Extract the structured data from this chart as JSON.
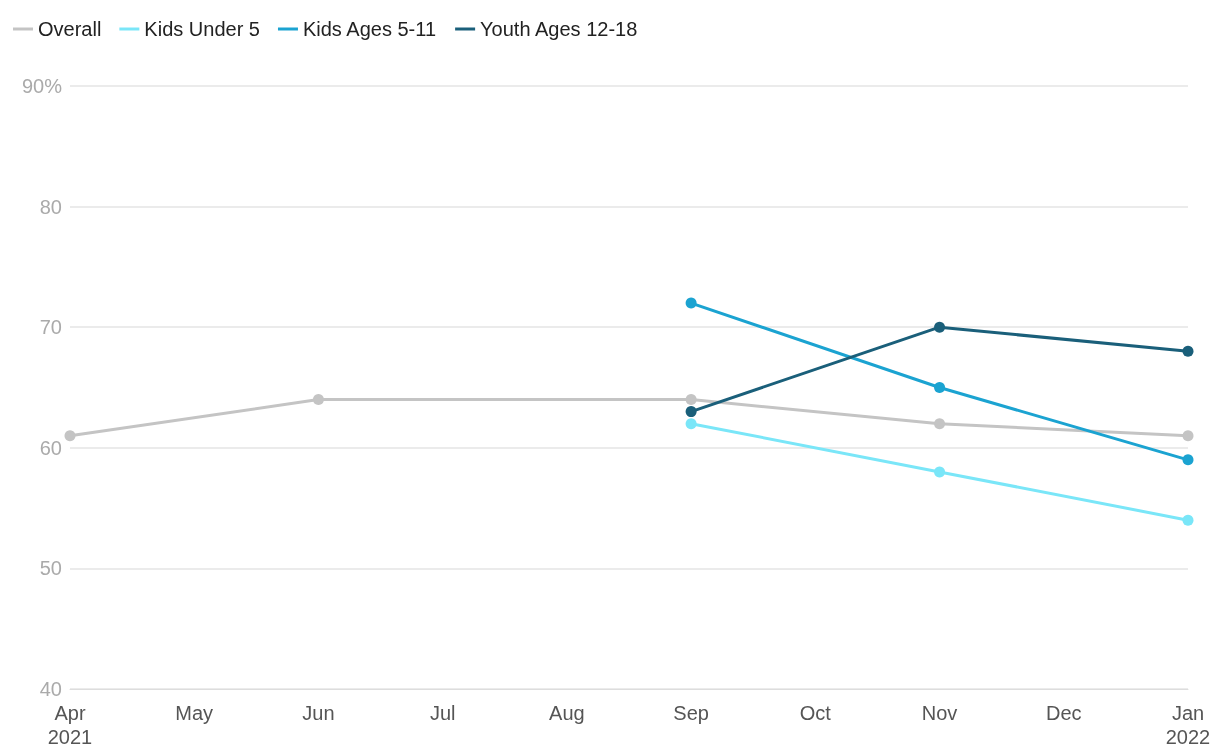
{
  "chart_data": {
    "type": "line",
    "categories": [
      "Apr\n2021",
      "May",
      "Jun",
      "Jul",
      "Aug",
      "Sep",
      "Oct",
      "Nov",
      "Dec",
      "Jan\n2022"
    ],
    "series": [
      {
        "name": "Overall",
        "color": "#c4c4c4",
        "values": [
          61,
          null,
          64,
          null,
          null,
          64,
          null,
          62,
          null,
          61
        ]
      },
      {
        "name": "Kids Under 5",
        "color": "#7ae6f8",
        "values": [
          null,
          null,
          null,
          null,
          null,
          62,
          null,
          58,
          null,
          54
        ]
      },
      {
        "name": "Kids Ages 5-11",
        "color": "#1ba3d1",
        "values": [
          null,
          null,
          null,
          null,
          null,
          72,
          null,
          65,
          null,
          59
        ]
      },
      {
        "name": "Youth Ages 12-18",
        "color": "#1a5f7a",
        "values": [
          null,
          null,
          null,
          null,
          null,
          63,
          null,
          70,
          null,
          68
        ]
      }
    ],
    "ylim": [
      40,
      90
    ],
    "yticks": [
      40,
      50,
      60,
      70,
      80,
      {
        "value": 90,
        "label": "90%"
      }
    ],
    "grid": "y",
    "legend": "top left",
    "marker": "circle",
    "line_style": "solid"
  }
}
